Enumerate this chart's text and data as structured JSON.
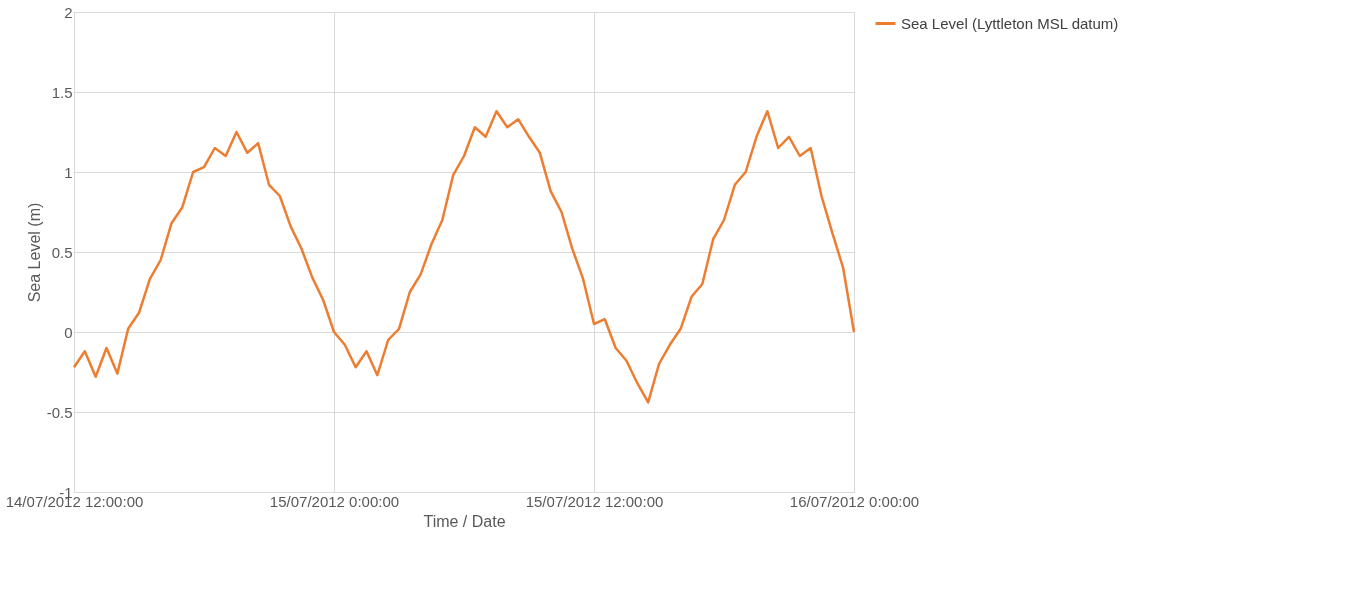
{
  "chart_data": {
    "type": "line",
    "xlabel": "Time / Date",
    "ylabel": "Sea Level (m)",
    "x": [
      "2012-07-14T12:00",
      "2012-07-14T12:30",
      "2012-07-14T13:00",
      "2012-07-14T13:30",
      "2012-07-14T14:00",
      "2012-07-14T14:30",
      "2012-07-14T15:00",
      "2012-07-14T15:30",
      "2012-07-14T16:00",
      "2012-07-14T16:30",
      "2012-07-14T17:00",
      "2012-07-14T17:30",
      "2012-07-14T18:00",
      "2012-07-14T18:30",
      "2012-07-14T19:00",
      "2012-07-14T19:30",
      "2012-07-14T20:00",
      "2012-07-14T20:30",
      "2012-07-14T21:00",
      "2012-07-14T21:30",
      "2012-07-14T22:00",
      "2012-07-14T22:30",
      "2012-07-14T23:00",
      "2012-07-14T23:30",
      "2012-07-15T00:00",
      "2012-07-15T00:30",
      "2012-07-15T01:00",
      "2012-07-15T01:30",
      "2012-07-15T02:00",
      "2012-07-15T02:30",
      "2012-07-15T03:00",
      "2012-07-15T03:30",
      "2012-07-15T04:00",
      "2012-07-15T04:30",
      "2012-07-15T05:00",
      "2012-07-15T05:30",
      "2012-07-15T06:00",
      "2012-07-15T06:30",
      "2012-07-15T07:00",
      "2012-07-15T07:30",
      "2012-07-15T08:00",
      "2012-07-15T08:30",
      "2012-07-15T09:00",
      "2012-07-15T09:30",
      "2012-07-15T10:00",
      "2012-07-15T10:30",
      "2012-07-15T11:00",
      "2012-07-15T11:30",
      "2012-07-15T12:00",
      "2012-07-15T12:30",
      "2012-07-15T13:00",
      "2012-07-15T13:30",
      "2012-07-15T14:00",
      "2012-07-15T14:30",
      "2012-07-15T15:00",
      "2012-07-15T15:30",
      "2012-07-15T16:00",
      "2012-07-15T16:30",
      "2012-07-15T17:00",
      "2012-07-15T17:30",
      "2012-07-15T18:00",
      "2012-07-15T18:30",
      "2012-07-15T19:00",
      "2012-07-15T19:30",
      "2012-07-15T20:00",
      "2012-07-15T20:30",
      "2012-07-15T21:00",
      "2012-07-15T21:30",
      "2012-07-15T22:00",
      "2012-07-15T22:30",
      "2012-07-15T23:00",
      "2012-07-15T23:30",
      "2012-07-16T00:00"
    ],
    "series": [
      {
        "name": "Sea Level (Lyttleton MSL datum)",
        "color": "#ed7d31",
        "values": [
          -0.22,
          -0.12,
          -0.28,
          -0.1,
          -0.26,
          0.02,
          0.12,
          0.33,
          0.45,
          0.68,
          0.78,
          1.0,
          1.03,
          1.15,
          1.1,
          1.25,
          1.12,
          1.18,
          0.92,
          0.85,
          0.66,
          0.52,
          0.34,
          0.2,
          0.0,
          -0.08,
          -0.22,
          -0.12,
          -0.27,
          -0.05,
          0.02,
          0.25,
          0.36,
          0.55,
          0.7,
          0.98,
          1.1,
          1.28,
          1.22,
          1.38,
          1.28,
          1.33,
          1.22,
          1.12,
          0.88,
          0.75,
          0.52,
          0.33,
          0.05,
          0.08,
          -0.1,
          -0.18,
          -0.32,
          -0.44,
          -0.2,
          -0.08,
          0.02,
          0.22,
          0.3,
          0.58,
          0.7,
          0.92,
          1.0,
          1.22,
          1.38,
          1.15,
          1.22,
          1.1,
          1.15,
          0.85,
          0.62,
          0.4,
          0.0
        ]
      }
    ],
    "xlim": [
      "2012-07-14T12:00",
      "2012-07-16T00:00"
    ],
    "xticks": [
      {
        "value": "2012-07-14T12:00",
        "label": "14/07/2012 12:00:00"
      },
      {
        "value": "2012-07-15T00:00",
        "label": "15/07/2012 0:00:00"
      },
      {
        "value": "2012-07-15T12:00",
        "label": "15/07/2012 12:00:00"
      },
      {
        "value": "2012-07-16T00:00",
        "label": "16/07/2012 0:00:00"
      }
    ],
    "ylim": [
      -1,
      2
    ],
    "yticks": [
      -1,
      -0.5,
      0,
      0.5,
      1,
      1.5,
      2
    ],
    "grid": true,
    "legend": "right",
    "marker": "none",
    "line_style": "solid"
  }
}
